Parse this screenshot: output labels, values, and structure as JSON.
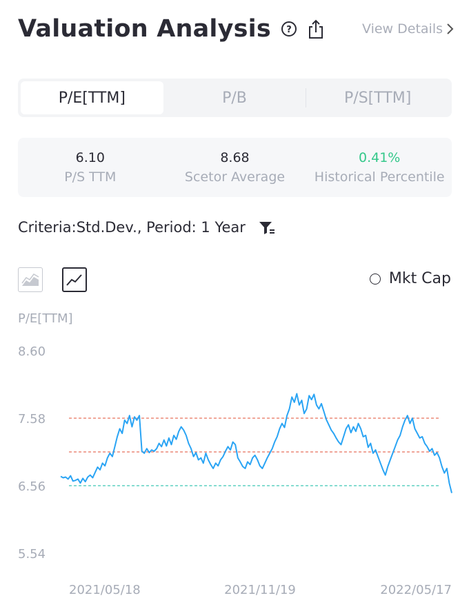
{
  "header": {
    "title": "Valuation Analysis",
    "help_icon": "question-circle-icon",
    "share_icon": "share-icon",
    "view_details": "View Details"
  },
  "tabs": [
    {
      "label": "P/E[TTM]",
      "active": true
    },
    {
      "label": "P/B",
      "active": false
    },
    {
      "label": "P/S[TTM]",
      "active": false
    }
  ],
  "stats": [
    {
      "value": "6.10",
      "label": "P/S TTM",
      "color": "#2b2b35"
    },
    {
      "value": "8.68",
      "label": "Scetor Average",
      "color": "#2b2b35"
    },
    {
      "value": "0.41%",
      "label": "Historical Percentile",
      "color": "#34c88a"
    }
  ],
  "criteria": {
    "text": "Criteria:Std.Dev., Period: 1 Year",
    "icon": "filter-icon"
  },
  "chart_toggle": {
    "area_icon": "area-chart-icon",
    "line_icon": "line-chart-icon",
    "mkt_cap_label": "Mkt Cap"
  },
  "chart_data": {
    "type": "line",
    "ylabel": "P/E[TTM]",
    "ylim": [
      5.54,
      8.6
    ],
    "yticks": [
      "8.60",
      "7.58",
      "6.56",
      "5.54"
    ],
    "xticks": [
      "2021/05/18",
      "2021/11/19",
      "2022/05/17"
    ],
    "x_range": [
      "2021/05/18",
      "2022/05/17"
    ],
    "series": [
      {
        "color": "#2aa4f4",
        "values": [
          6.7,
          6.68,
          6.69,
          6.66,
          6.71,
          6.63,
          6.64,
          6.66,
          6.6,
          6.67,
          6.62,
          6.69,
          6.72,
          6.68,
          6.76,
          6.84,
          6.8,
          6.9,
          6.86,
          6.98,
          7.05,
          7.0,
          7.15,
          7.3,
          7.42,
          7.35,
          7.55,
          7.5,
          7.62,
          7.45,
          7.6,
          7.55,
          7.62,
          7.08,
          7.05,
          7.12,
          7.06,
          7.1,
          7.08,
          7.12,
          7.2,
          7.15,
          7.25,
          7.16,
          7.28,
          7.18,
          7.32,
          7.26,
          7.38,
          7.45,
          7.4,
          7.32,
          7.2,
          7.12,
          7.0,
          7.06,
          6.95,
          6.98,
          6.9,
          7.05,
          6.95,
          6.88,
          6.82,
          6.9,
          6.86,
          6.95,
          7.0,
          7.08,
          7.15,
          7.1,
          7.22,
          7.18,
          6.98,
          6.92,
          6.85,
          6.82,
          6.92,
          6.88,
          6.98,
          7.02,
          6.95,
          6.86,
          6.82,
          6.9,
          6.98,
          7.05,
          7.12,
          7.22,
          7.3,
          7.42,
          7.5,
          7.44,
          7.62,
          7.72,
          7.9,
          7.82,
          7.95,
          7.78,
          7.85,
          7.65,
          7.72,
          7.92,
          7.86,
          7.94,
          7.78,
          7.72,
          7.8,
          7.68,
          7.56,
          7.48,
          7.4,
          7.35,
          7.28,
          7.22,
          7.18,
          7.3,
          7.42,
          7.48,
          7.36,
          7.45,
          7.38,
          7.5,
          7.42,
          7.3,
          7.32,
          7.14,
          7.2,
          7.05,
          7.1,
          7.0,
          6.9,
          6.8,
          6.72,
          6.85,
          6.95,
          7.05,
          7.15,
          7.25,
          7.32,
          7.45,
          7.55,
          7.62,
          7.5,
          7.58,
          7.42,
          7.35,
          7.28,
          7.3,
          7.2,
          7.15,
          7.08,
          7.12,
          7.02,
          7.06,
          6.98,
          6.85,
          6.75,
          6.82,
          6.6,
          6.45
        ]
      }
    ],
    "reference_lines": [
      {
        "value": 7.58,
        "color": "#e8715c",
        "style": "dashed"
      },
      {
        "value": 7.07,
        "color": "#e8715c",
        "style": "dashed"
      },
      {
        "value": 6.56,
        "color": "#3cc6b4",
        "style": "dashed"
      }
    ],
    "grid": false
  }
}
